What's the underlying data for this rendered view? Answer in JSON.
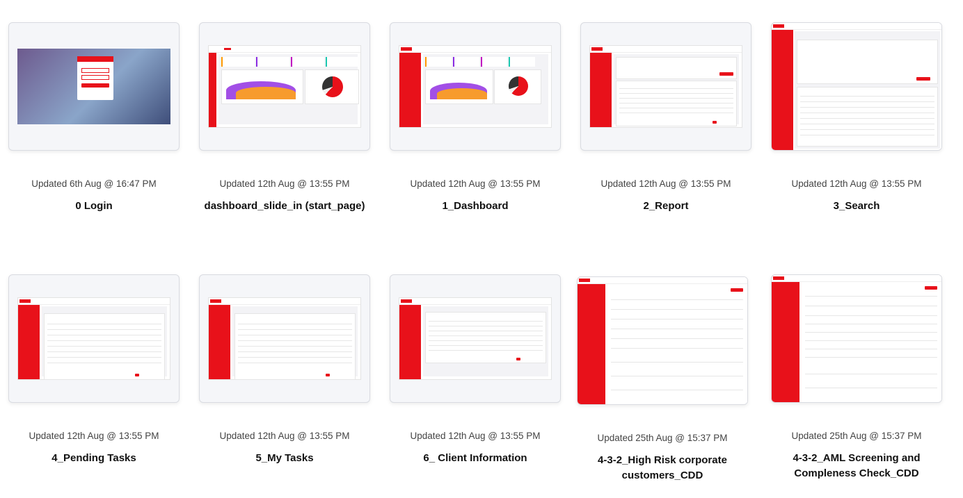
{
  "cards": [
    {
      "updated": "Updated 6th Aug @ 16:47 PM",
      "title": "0 Login",
      "preview": "login"
    },
    {
      "updated": "Updated 12th Aug @ 13:55 PM",
      "title": "dashboard_slide_in (start_page)",
      "preview": "dashboard"
    },
    {
      "updated": "Updated 12th Aug @ 13:55 PM",
      "title": "1_Dashboard",
      "preview": "dashboard"
    },
    {
      "updated": "Updated 12th Aug @ 13:55 PM",
      "title": "2_Report",
      "preview": "report"
    },
    {
      "updated": "Updated 12th Aug @ 13:55 PM",
      "title": "3_Search",
      "preview": "search"
    },
    {
      "updated": "Updated 12th Aug @ 13:55 PM",
      "title": "4_Pending Tasks",
      "preview": "table"
    },
    {
      "updated": "Updated 12th Aug @ 13:55 PM",
      "title": "5_My Tasks",
      "preview": "table"
    },
    {
      "updated": "Updated 12th Aug @ 13:55 PM",
      "title": "6_ Client Information",
      "preview": "table"
    },
    {
      "updated": "Updated 25th Aug @ 15:37 PM",
      "title": "4-3-2_High Risk corporate customers_CDD",
      "preview": "form"
    },
    {
      "updated": "Updated 25th Aug @ 15:37 PM",
      "title": "4-3-2_AML Screening and Compleness Check_CDD",
      "preview": "form"
    }
  ],
  "colors": {
    "brand_red": "#e8111a",
    "card_border": "#d9dbe1"
  }
}
